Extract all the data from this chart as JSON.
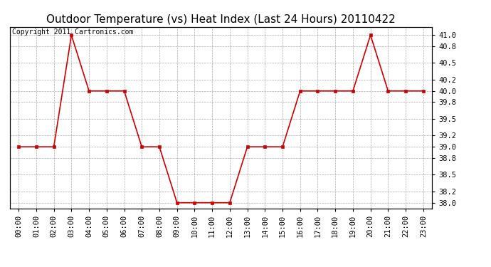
{
  "title": "Outdoor Temperature (vs) Heat Index (Last 24 Hours) 20110422",
  "copyright": "Copyright 2011 Cartronics.com",
  "x_labels": [
    "00:00",
    "01:00",
    "02:00",
    "03:00",
    "04:00",
    "05:00",
    "06:00",
    "07:00",
    "08:00",
    "09:00",
    "10:00",
    "11:00",
    "12:00",
    "13:00",
    "14:00",
    "15:00",
    "16:00",
    "17:00",
    "18:00",
    "19:00",
    "20:00",
    "21:00",
    "22:00",
    "23:00"
  ],
  "y_values": [
    39.0,
    39.0,
    39.0,
    41.0,
    40.0,
    40.0,
    40.0,
    39.0,
    39.0,
    38.0,
    38.0,
    38.0,
    38.0,
    39.0,
    39.0,
    39.0,
    40.0,
    40.0,
    40.0,
    40.0,
    41.0,
    40.0,
    40.0,
    40.0
  ],
  "line_color": "#cc0000",
  "marker": "s",
  "marker_size": 3,
  "marker_color": "#cc0000",
  "background_color": "#ffffff",
  "grid_color": "#aaaaaa",
  "ylim_min": 37.9,
  "ylim_max": 41.15,
  "y_ticks": [
    38.0,
    38.2,
    38.5,
    38.8,
    39.0,
    39.2,
    39.5,
    39.8,
    40.0,
    40.2,
    40.5,
    40.8,
    41.0
  ],
  "title_fontsize": 11,
  "tick_fontsize": 7.5,
  "copyright_fontsize": 7
}
